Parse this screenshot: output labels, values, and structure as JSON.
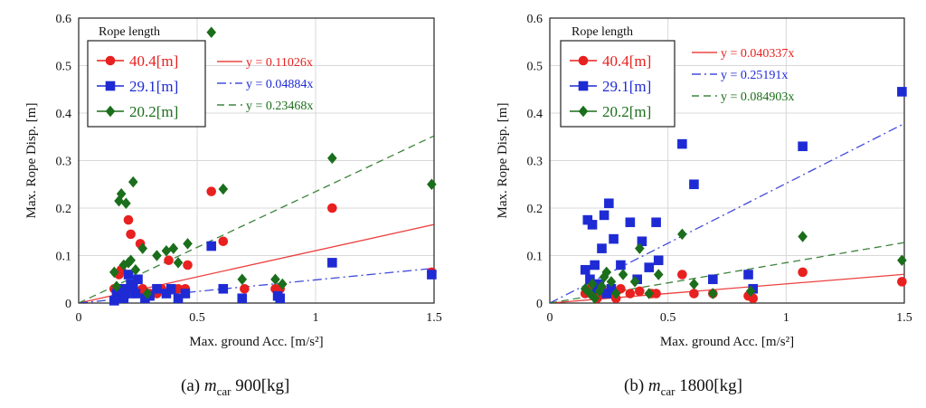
{
  "chart_data": [
    {
      "type": "scatter",
      "title": "",
      "xlabel": "Max. ground Acc. [m/s²]",
      "ylabel": "Max. Rope Disp. [m]",
      "xlim": [
        0,
        1.5
      ],
      "ylim": [
        0,
        0.6
      ],
      "xticks": [
        "0",
        "0.5",
        "1",
        "1.5"
      ],
      "yticks": [
        "0",
        "0.1",
        "0.2",
        "0.3",
        "0.4",
        "0.5",
        "0.6"
      ],
      "grid": true,
      "legend_title": "Rope length",
      "legend_position": "top-left",
      "fit_legend_position": "top",
      "caption": {
        "prefix": "(a) ",
        "var": "m",
        "sub": "car",
        "value": " 900[kg]"
      },
      "series": [
        {
          "name": "40.4[m]",
          "marker": "circle",
          "color": "#e8201f",
          "fit_label": "y = 0.11026x",
          "fit_slope": 0.11026,
          "fit_dash": "solid",
          "x": [
            0.15,
            0.17,
            0.18,
            0.19,
            0.2,
            0.21,
            0.22,
            0.23,
            0.25,
            0.26,
            0.27,
            0.3,
            0.33,
            0.35,
            0.38,
            0.42,
            0.45,
            0.46,
            0.56,
            0.61,
            0.7,
            0.83,
            0.85,
            1.07,
            1.49
          ],
          "y": [
            0.03,
            0.06,
            0.07,
            0.03,
            0.02,
            0.175,
            0.145,
            0.03,
            0.025,
            0.125,
            0.03,
            0.02,
            0.02,
            0.03,
            0.09,
            0.03,
            0.03,
            0.08,
            0.235,
            0.13,
            0.03,
            0.03,
            0.03,
            0.2,
            0.065
          ]
        },
        {
          "name": "29.1[m]",
          "marker": "square",
          "color": "#1e2bd4",
          "fit_label": "y = 0.04884x",
          "fit_slope": 0.04884,
          "fit_dash": "dashdot",
          "x": [
            0.15,
            0.16,
            0.18,
            0.19,
            0.2,
            0.21,
            0.22,
            0.23,
            0.24,
            0.25,
            0.28,
            0.3,
            0.33,
            0.37,
            0.39,
            0.42,
            0.45,
            0.56,
            0.61,
            0.69,
            0.84,
            0.85,
            1.07,
            1.49
          ],
          "y": [
            0.005,
            0.02,
            0.03,
            0.01,
            0.02,
            0.06,
            0.04,
            0.03,
            0.02,
            0.05,
            0.01,
            0.015,
            0.03,
            0.02,
            0.03,
            0.01,
            0.02,
            0.12,
            0.03,
            0.01,
            0.015,
            0.01,
            0.085,
            0.06
          ]
        },
        {
          "name": "20.2[m]",
          "marker": "diamond",
          "color": "#1b6e1b",
          "fit_label": "y = 0.23468x",
          "fit_slope": 0.23468,
          "fit_dash": "dashed",
          "x": [
            0.15,
            0.16,
            0.17,
            0.18,
            0.19,
            0.2,
            0.21,
            0.22,
            0.23,
            0.24,
            0.27,
            0.29,
            0.33,
            0.37,
            0.4,
            0.42,
            0.46,
            0.56,
            0.61,
            0.69,
            0.83,
            0.86,
            1.07,
            1.49
          ],
          "y": [
            0.065,
            0.035,
            0.215,
            0.23,
            0.08,
            0.21,
            0.085,
            0.09,
            0.255,
            0.07,
            0.115,
            0.02,
            0.1,
            0.11,
            0.115,
            0.085,
            0.125,
            0.57,
            0.24,
            0.05,
            0.05,
            0.04,
            0.305,
            0.25
          ]
        }
      ]
    },
    {
      "type": "scatter",
      "title": "",
      "xlabel": "Max. ground Acc. [m/s²]",
      "ylabel": "Max. Rope Disp. [m]",
      "xlim": [
        0,
        1.5
      ],
      "ylim": [
        0,
        0.6
      ],
      "xticks": [
        "0",
        "0.5",
        "1",
        "1.5"
      ],
      "yticks": [
        "0",
        "0.1",
        "0.2",
        "0.3",
        "0.4",
        "0.5",
        "0.6"
      ],
      "grid": true,
      "legend_title": "Rope length",
      "legend_position": "top-left",
      "fit_legend_position": "top",
      "caption": {
        "prefix": "(b) ",
        "var": "m",
        "sub": "car",
        "value": " 1800[kg]"
      },
      "series": [
        {
          "name": "40.4[m]",
          "marker": "circle",
          "color": "#e8201f",
          "fit_label": "y = 0.040337x",
          "fit_slope": 0.040337,
          "fit_dash": "solid",
          "x": [
            0.15,
            0.17,
            0.19,
            0.2,
            0.22,
            0.23,
            0.25,
            0.28,
            0.3,
            0.34,
            0.38,
            0.43,
            0.45,
            0.56,
            0.61,
            0.69,
            0.84,
            0.86,
            1.07,
            1.49
          ],
          "y": [
            0.02,
            0.03,
            0.02,
            0.01,
            0.03,
            0.02,
            0.02,
            0.01,
            0.03,
            0.02,
            0.025,
            0.02,
            0.02,
            0.06,
            0.02,
            0.02,
            0.015,
            0.01,
            0.065,
            0.045
          ]
        },
        {
          "name": "29.1[m]",
          "marker": "square",
          "color": "#1e2bd4",
          "fit_label": "y = 0.25191x",
          "fit_slope": 0.25191,
          "fit_dash": "dashdot",
          "x": [
            0.15,
            0.16,
            0.17,
            0.18,
            0.19,
            0.2,
            0.21,
            0.22,
            0.23,
            0.24,
            0.25,
            0.26,
            0.27,
            0.3,
            0.34,
            0.37,
            0.39,
            0.42,
            0.45,
            0.46,
            0.56,
            0.61,
            0.69,
            0.84,
            0.86,
            1.07,
            1.49
          ],
          "y": [
            0.07,
            0.175,
            0.05,
            0.165,
            0.08,
            0.03,
            0.04,
            0.115,
            0.185,
            0.02,
            0.21,
            0.03,
            0.135,
            0.08,
            0.17,
            0.05,
            0.13,
            0.075,
            0.17,
            0.09,
            0.335,
            0.25,
            0.05,
            0.06,
            0.03,
            0.33,
            0.445
          ]
        },
        {
          "name": "20.2[m]",
          "marker": "diamond",
          "color": "#1b6e1b",
          "fit_label": "y = 0.084903x",
          "fit_slope": 0.084903,
          "fit_dash": "dashed",
          "x": [
            0.15,
            0.17,
            0.18,
            0.19,
            0.21,
            0.22,
            0.23,
            0.24,
            0.26,
            0.28,
            0.31,
            0.36,
            0.38,
            0.42,
            0.46,
            0.56,
            0.61,
            0.69,
            0.85,
            1.07,
            1.49
          ],
          "y": [
            0.03,
            0.02,
            0.04,
            0.01,
            0.025,
            0.035,
            0.055,
            0.065,
            0.045,
            0.02,
            0.06,
            0.045,
            0.115,
            0.02,
            0.06,
            0.145,
            0.04,
            0.02,
            0.025,
            0.14,
            0.09
          ]
        }
      ]
    }
  ]
}
